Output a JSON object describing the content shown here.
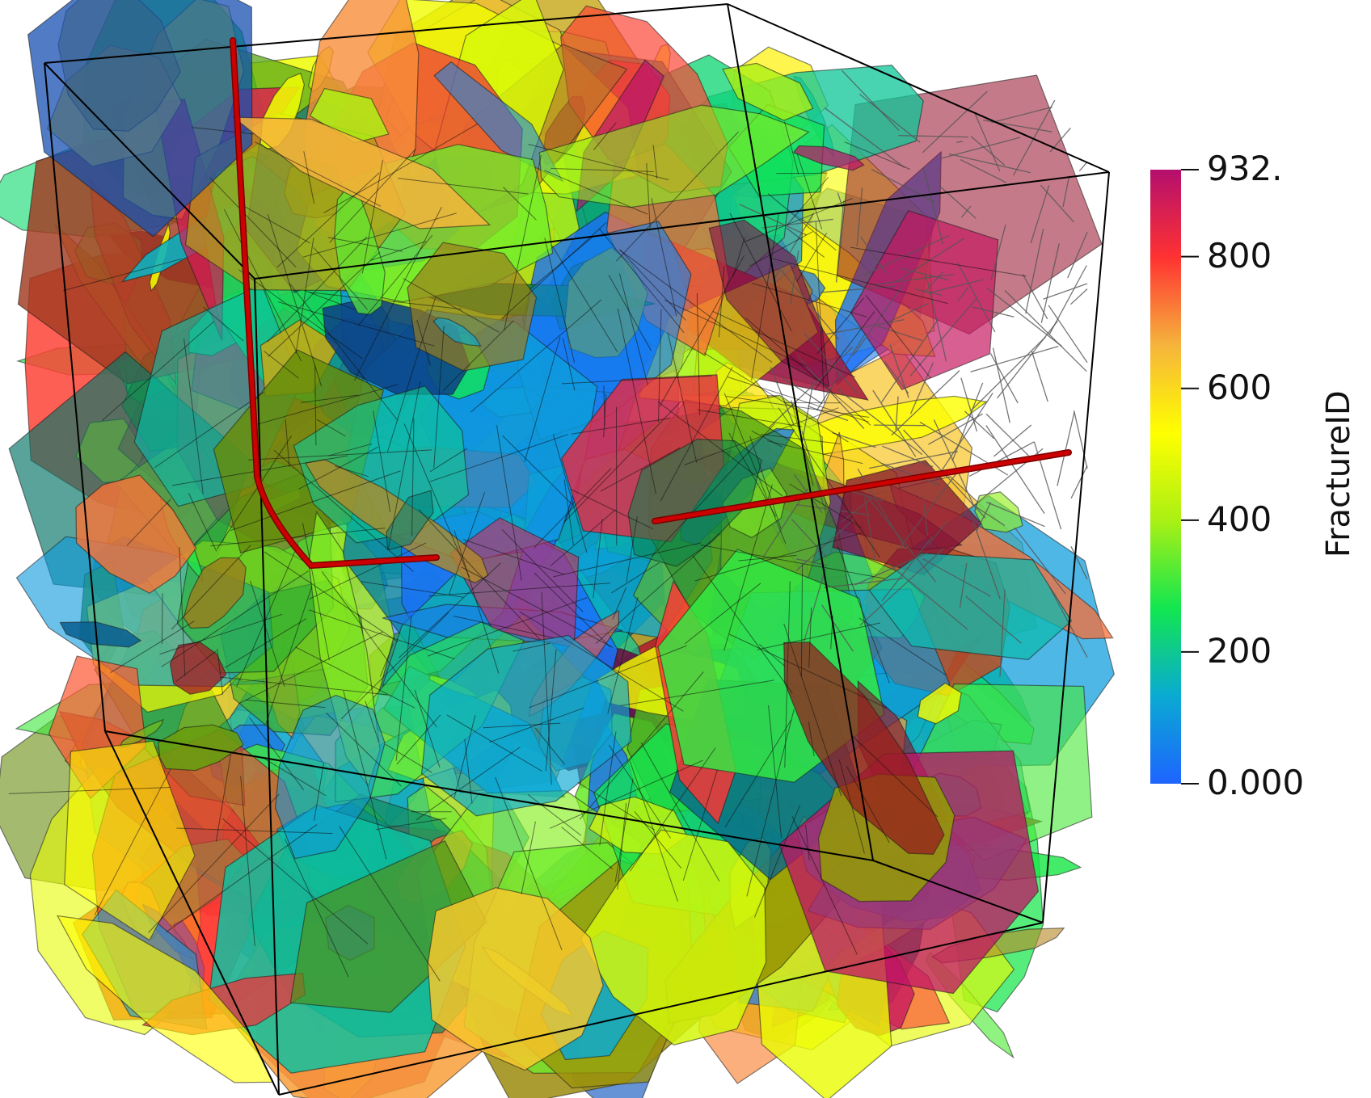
{
  "scalar_bar": {
    "title": "FractureID",
    "min": 0,
    "max": 932,
    "ticks": [
      {
        "value": 932,
        "label": "932."
      },
      {
        "value": 800,
        "label": "800"
      },
      {
        "value": 600,
        "label": "600"
      },
      {
        "value": 400,
        "label": "400"
      },
      {
        "value": 200,
        "label": "200"
      },
      {
        "value": 0,
        "label": "0.000"
      }
    ],
    "colormap": [
      "#1e64ff",
      "#0aaad2",
      "#12e650",
      "#aaf014",
      "#ffff00",
      "#f5b43c",
      "#ff3232",
      "#b40f6e"
    ]
  },
  "scene": {
    "bounding_box_color": "#000000",
    "well_color": "#cc0000"
  }
}
